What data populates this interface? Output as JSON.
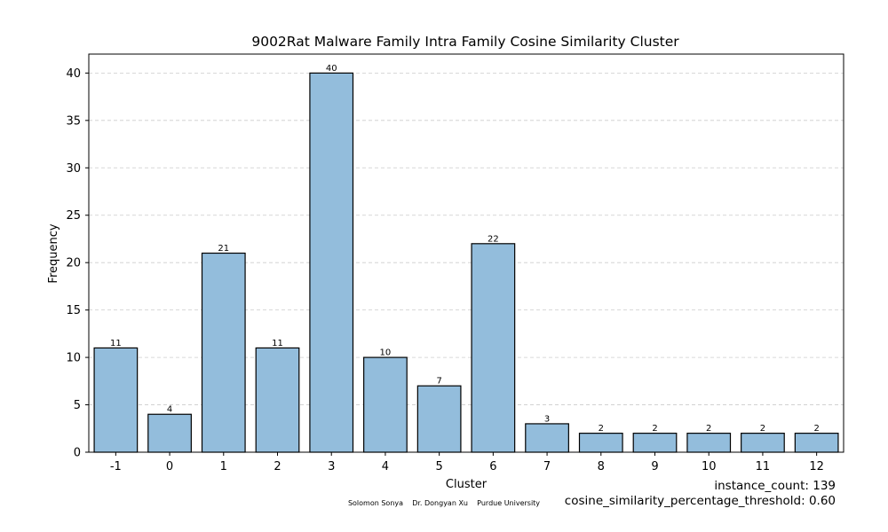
{
  "chart_data": {
    "type": "bar",
    "title": "9002Rat Malware Family Intra Family Cosine Similarity Cluster",
    "xlabel": "Cluster",
    "ylabel": "Frequency",
    "categories": [
      "-1",
      "0",
      "1",
      "2",
      "3",
      "4",
      "5",
      "6",
      "7",
      "8",
      "9",
      "10",
      "11",
      "12"
    ],
    "values": [
      11,
      4,
      21,
      11,
      40,
      10,
      7,
      22,
      3,
      2,
      2,
      2,
      2,
      2
    ],
    "ylim": [
      0,
      42
    ],
    "yticks": [
      0,
      5,
      10,
      15,
      20,
      25,
      30,
      35,
      40
    ],
    "grid": "horizontal dashed",
    "bar_color": "#93bddc",
    "show_value_labels": true
  },
  "annotations": {
    "instance_count": "instance_count: 139",
    "threshold": "cosine_similarity_percentage_threshold: 0.60",
    "credits": "Solomon Sonya    Dr. Dongyan Xu    Purdue University"
  }
}
